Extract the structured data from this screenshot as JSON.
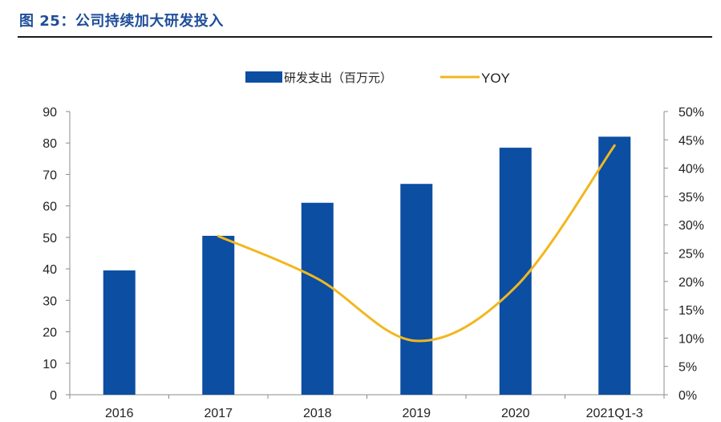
{
  "figure_title": "图 25：公司持续加大研发投入",
  "colors": {
    "bar": "#0b4ea2",
    "line": "#f2b71e",
    "title": "#1f4e9a",
    "axis": "#8c8c8c"
  },
  "chart_data": {
    "type": "bar",
    "categories": [
      "2016",
      "2017",
      "2018",
      "2019",
      "2020",
      "2021Q1-3"
    ],
    "series": [
      {
        "name": "研发支出（百万元）",
        "type": "bar",
        "axis": "left",
        "values": [
          39.5,
          50.5,
          61,
          67,
          78.5,
          82
        ]
      },
      {
        "name": "YOY",
        "type": "line",
        "axis": "right",
        "unit": "%",
        "values": [
          null,
          28,
          20.5,
          9.5,
          19,
          44
        ]
      }
    ],
    "ylim": [
      0,
      90
    ],
    "y_ticks": [
      "0",
      "10",
      "20",
      "30",
      "40",
      "50",
      "60",
      "70",
      "80",
      "90"
    ],
    "y2lim": [
      0,
      50
    ],
    "y2_ticks": [
      "0%",
      "5%",
      "10%",
      "15%",
      "20%",
      "25%",
      "30%",
      "35%",
      "40%",
      "45%",
      "50%"
    ],
    "legend": "top-center",
    "grid": false
  }
}
